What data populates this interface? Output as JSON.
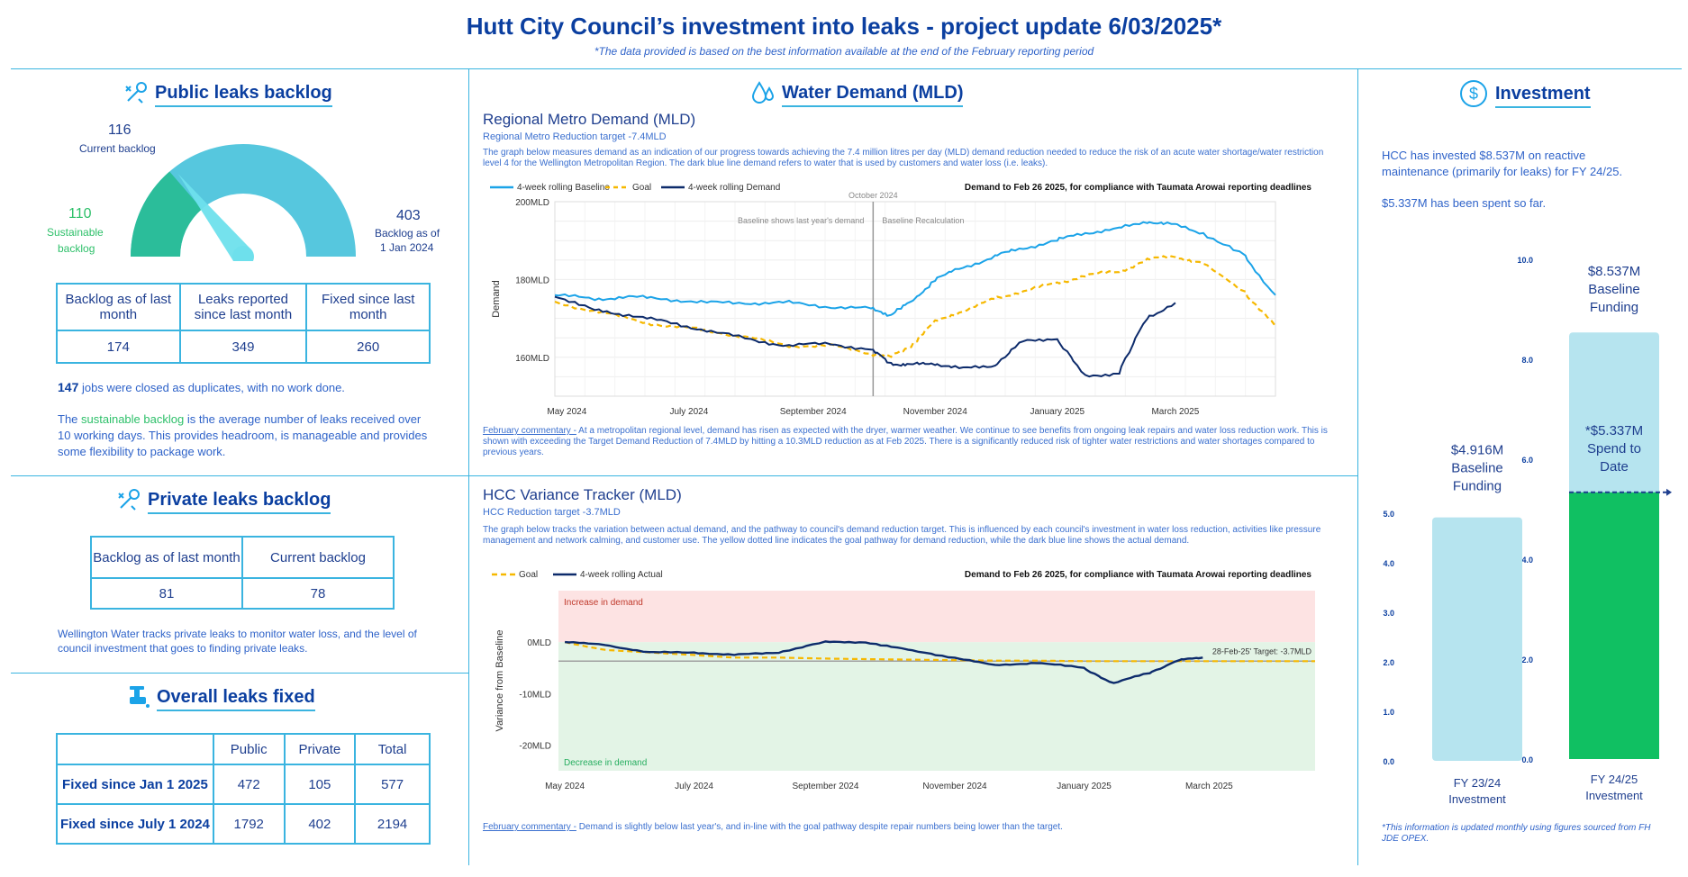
{
  "header": {
    "title": "Hutt City Council’s investment into leaks - project update 6/03/2025*",
    "subtitle": "*The data provided is based on the best information available at the end of the February reporting period"
  },
  "public_backlog": {
    "title": "Public leaks backlog",
    "current_value": "116",
    "current_label": "Current backlog",
    "sustainable_value": "110",
    "sustainable_label_1": "Sustainable",
    "sustainable_label_2": "backlog",
    "jan_value": "403",
    "jan_label_1": "Backlog as of",
    "jan_label_2": "1 Jan 2024",
    "gauge": {
      "min": 0,
      "max": 403,
      "sustainable": 110,
      "current": 116
    },
    "table_headers": [
      "Backlog as of last month",
      "Leaks reported since last month",
      "Fixed since last month"
    ],
    "table_values": [
      "174",
      "349",
      "260"
    ],
    "dup_count": "147",
    "dup_text": " jobs were closed as duplicates, with no work done.",
    "sustain_pre": "The ",
    "sustain_link": "sustainable backlog",
    "sustain_post": " is the average number of leaks received over 10 working days. This provides headroom, is manageable and provides some flexibility to package work."
  },
  "private_backlog": {
    "title": "Private leaks backlog",
    "table_headers": [
      "Backlog as of last month",
      "Current backlog"
    ],
    "table_values": [
      "81",
      "78"
    ],
    "text": "Wellington Water tracks private leaks to monitor water loss, and the level of council investment that goes to finding private leaks."
  },
  "overall_fixed": {
    "title": "Overall leaks fixed",
    "headers": [
      "",
      "Public",
      "Private",
      "Total"
    ],
    "rows": [
      {
        "label": "Fixed since Jan 1 2025",
        "public": "472",
        "private": "105",
        "total": "577"
      },
      {
        "label": "Fixed since July 1 2024",
        "public": "1792",
        "private": "402",
        "total": "2194"
      }
    ]
  },
  "water_demand": {
    "title": "Water Demand (MLD)",
    "regional": {
      "heading": "Regional Metro Demand (MLD)",
      "target": "Regional Metro Reduction target -7.4MLD",
      "desc": "The graph below measures demand as an indication of our progress towards achieving the 7.4 million litres per day (MLD) demand reduction needed to reduce the risk of an acute water shortage/water restriction level 4 for the Wellington Metropolitan Region. The dark blue line demand refers to water that is used by customers and water loss (i.e. leaks).",
      "legend": [
        "4-week rolling Baseline",
        "Goal",
        "4-week rolling Demand"
      ],
      "compliance": "Demand to Feb 26 2025, for compliance with Taumata Arowai reporting deadlines",
      "october_label": "October 2024",
      "baseline_note_left": "Baseline shows last year's demand",
      "baseline_note_right": "Baseline Recalculation",
      "ylabel": "Demand",
      "yticks": [
        "200MLD",
        "180MLD",
        "160MLD"
      ],
      "xticks": [
        "May 2024",
        "July 2024",
        "September 2024",
        "November 2024",
        "January 2025",
        "March 2025"
      ],
      "commentary_label": "February commentary -",
      "commentary": " At a metropolitan regional level, demand has risen as expected with the dryer, warmer weather. We continue to see benefits from ongoing leak repairs and water loss reduction work. This is shown with exceeding the Target Demand Reduction of 7.4MLD by hitting a 10.3MLD reduction as at Feb 2025. There is a significantly reduced risk of tighter water restrictions and water shortages compared to previous years."
    },
    "hcc": {
      "heading": "HCC Variance Tracker (MLD)",
      "target": "HCC Reduction target -3.7MLD",
      "desc": "The graph below tracks the variation between actual demand, and the pathway to council's demand reduction target. This is influenced by each council's investment in water loss reduction, activities like pressure management and network calming, and customer use. The yellow dotted line indicates the goal pathway for demand reduction, while the dark blue line shows the actual demand.",
      "legend": [
        "Goal",
        "4-week rolling Actual"
      ],
      "compliance": "Demand to Feb 26 2025, for compliance with Taumata Arowai reporting deadlines",
      "increase_label": "Increase in demand",
      "decrease_label": "Decrease in demand",
      "target_label": "28-Feb-25' Target: -3.7MLD",
      "ylabel": "Variance from Baseline",
      "yticks": [
        "0MLD",
        "-10MLD",
        "-20MLD"
      ],
      "xticks": [
        "May 2024",
        "July 2024",
        "September 2024",
        "November 2024",
        "January 2025",
        "March 2025"
      ],
      "commentary_label": "February commentary -",
      "commentary": " Demand is slightly below last year's, and in-line with the goal pathway despite repair numbers being lower than the target."
    }
  },
  "investment": {
    "title": "Investment",
    "text1": "HCC has invested $8.537M on reactive maintenance (primarily for leaks) for FY 24/25.",
    "text2": "$5.337M has been spent so far.",
    "bar1": {
      "value_label": "$4.916M",
      "l2": "Baseline",
      "l3": "Funding",
      "x1": "FY 23/24",
      "x2": "Investment"
    },
    "bar2": {
      "value_label": "$8.537M",
      "l2": "Baseline",
      "l3": "Funding",
      "x1": "FY 24/25",
      "x2": "Investment"
    },
    "spend": {
      "l1": "*$5.337M",
      "l2": "Spend to",
      "l3": "Date"
    },
    "axis1": [
      "5.0",
      "4.0",
      "3.0",
      "2.0",
      "1.0",
      "0.0"
    ],
    "axis2": [
      "10.0",
      "8.0",
      "6.0",
      "4.0",
      "2.0",
      "0.0"
    ],
    "footnote": "*This information is updated monthly using figures sourced from FH JDE OPEX."
  },
  "chart_data": [
    {
      "type": "line",
      "title": "Regional Metro Demand (MLD)",
      "ylabel": "Demand",
      "ylim": [
        150,
        200
      ],
      "x": [
        "2024-04-25",
        "2024-05-15",
        "2024-06-01",
        "2024-06-20",
        "2024-07-10",
        "2024-08-01",
        "2024-08-20",
        "2024-09-10",
        "2024-09-30",
        "2024-10-10",
        "2024-10-20",
        "2024-11-01",
        "2024-11-15",
        "2024-12-01",
        "2024-12-15",
        "2025-01-01",
        "2025-01-15",
        "2025-02-01",
        "2025-02-15",
        "2025-03-01",
        "2025-03-15",
        "2025-04-05",
        "2025-04-20"
      ],
      "series": [
        {
          "name": "4-week rolling Baseline",
          "color": "#1ba3e8",
          "values": [
            176,
            175,
            175.5,
            175,
            174,
            174,
            174,
            173,
            172.5,
            171,
            174,
            180,
            183,
            186,
            188,
            190,
            192,
            193,
            195,
            194,
            192,
            186,
            176
          ]
        },
        {
          "name": "Goal",
          "color": "#f6b800",
          "values": [
            174,
            172,
            170,
            168,
            167,
            165,
            163,
            163,
            161,
            160,
            163,
            169,
            172,
            175,
            177,
            179,
            181,
            182,
            185,
            186,
            184,
            177,
            168
          ]
        },
        {
          "name": "4-week rolling Demand",
          "color": "#0d2b6b",
          "values": [
            176,
            172,
            171,
            169,
            167,
            164.5,
            163,
            163.5,
            162,
            158.5,
            158,
            158.5,
            157,
            158,
            164,
            165,
            155,
            156,
            170,
            174,
            null,
            null,
            null
          ]
        }
      ]
    },
    {
      "type": "line",
      "title": "HCC Variance Tracker (MLD)",
      "ylabel": "Variance from Baseline",
      "ylim": [
        -25,
        10
      ],
      "x": [
        "2024-05-01",
        "2024-05-20",
        "2024-06-10",
        "2024-07-01",
        "2024-07-20",
        "2024-08-10",
        "2024-09-01",
        "2024-09-20",
        "2024-10-10",
        "2024-11-01",
        "2024-11-20",
        "2024-12-10",
        "2025-01-01",
        "2025-01-15",
        "2025-02-01",
        "2025-02-15",
        "2025-02-26",
        "2025-04-20"
      ],
      "series": [
        {
          "name": "Goal",
          "color": "#f6b800",
          "values": [
            0,
            -1.5,
            -2,
            -2.5,
            -3,
            -3,
            -3.2,
            -3.3,
            -3.4,
            -3.5,
            -3.6,
            -3.6,
            -3.7,
            -3.7,
            -3.7,
            -3.7,
            -3.7,
            -3.7
          ]
        },
        {
          "name": "4-week rolling Actual",
          "color": "#0d2b6b",
          "values": [
            0,
            -0.5,
            -2,
            -2,
            -2.5,
            -2,
            0,
            0,
            -1.5,
            -3,
            -4.5,
            -4,
            -5,
            -8,
            -6,
            -3.5,
            -3,
            null
          ]
        }
      ]
    },
    {
      "type": "bar",
      "categories": [
        "FY 23/24 Investment",
        "FY 24/25 Investment"
      ],
      "series": [
        {
          "name": "Baseline Funding",
          "values": [
            4.916,
            8.537
          ]
        },
        {
          "name": "Spend to Date",
          "values": [
            null,
            5.337
          ]
        }
      ],
      "ylim": [
        0,
        10
      ]
    }
  ]
}
